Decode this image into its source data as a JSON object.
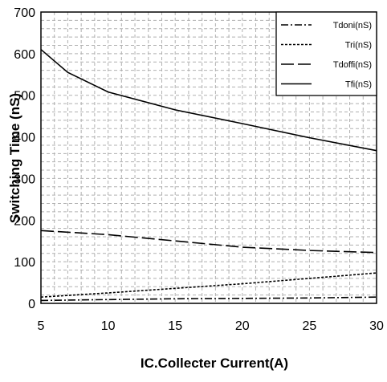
{
  "chart_data": {
    "type": "line",
    "title": "",
    "xlabel": "IC.Collecter Current(A)",
    "ylabel": "Switching Time (nS)",
    "xlim": [
      5,
      30
    ],
    "ylim": [
      0,
      700
    ],
    "xticks": [
      5,
      10,
      15,
      20,
      25,
      30
    ],
    "yticks": [
      0,
      100,
      200,
      300,
      400,
      500,
      600,
      700
    ],
    "grid": true,
    "legend_position": "top-right",
    "series": [
      {
        "name": "Tdoni(nS)",
        "dash": "dash-dot",
        "x": [
          5,
          10,
          15,
          20,
          25,
          30
        ],
        "y": [
          7,
          9,
          11,
          12,
          13,
          15
        ]
      },
      {
        "name": "Tri(nS)",
        "dash": "short-dash",
        "x": [
          5,
          10,
          15,
          20,
          25,
          30
        ],
        "y": [
          15,
          25,
          36,
          47,
          60,
          73
        ]
      },
      {
        "name": "Tdoffi(nS)",
        "dash": "long-dash",
        "x": [
          5,
          10,
          15,
          20,
          25,
          30
        ],
        "y": [
          175,
          165,
          150,
          135,
          127,
          122
        ]
      },
      {
        "name": "Tfi(nS)",
        "dash": "solid",
        "x": [
          5,
          7,
          10,
          15,
          20,
          25,
          30
        ],
        "y": [
          610,
          555,
          508,
          465,
          432,
          398,
          367
        ]
      }
    ]
  },
  "colors": {
    "line": "#000000",
    "grid": "#b0b0b0",
    "background": "#ffffff"
  }
}
